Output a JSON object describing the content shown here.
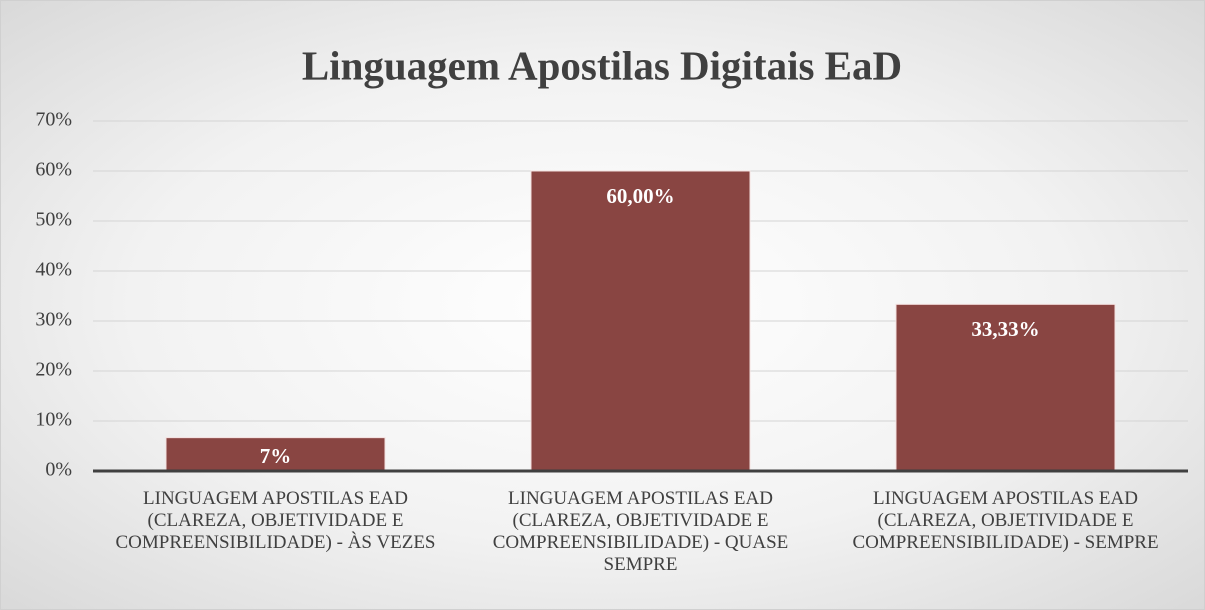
{
  "chart_data": {
    "type": "bar",
    "title": "Linguagem Apostilas Digitais EaD",
    "categories": [
      "LINGUAGEM APOSTILAS EAD (CLAREZA, OBJETIVIDADE E COMPREENSIBILIDADE) - ÀS VEZES",
      "LINGUAGEM APOSTILAS EAD (CLAREZA, OBJETIVIDADE E COMPREENSIBILIDADE) - QUASE SEMPRE",
      "LINGUAGEM APOSTILAS EAD (CLAREZA, OBJETIVIDADE E COMPREENSIBILIDADE) - SEMPRE"
    ],
    "values": [
      6.67,
      60,
      33.33
    ],
    "value_labels": [
      "7%",
      "60,00%",
      "33,33%"
    ],
    "color": "#894542",
    "ylim": [
      0,
      70
    ],
    "yticks": [
      {
        "value": 0,
        "label": "0%"
      },
      {
        "value": 10,
        "label": "10%"
      },
      {
        "value": 20,
        "label": "20%"
      },
      {
        "value": 30,
        "label": "30%"
      },
      {
        "value": 40,
        "label": "40%"
      },
      {
        "value": 50,
        "label": "50%"
      },
      {
        "value": 60,
        "label": "60%"
      },
      {
        "value": 70,
        "label": "70%"
      }
    ],
    "grid": true
  }
}
